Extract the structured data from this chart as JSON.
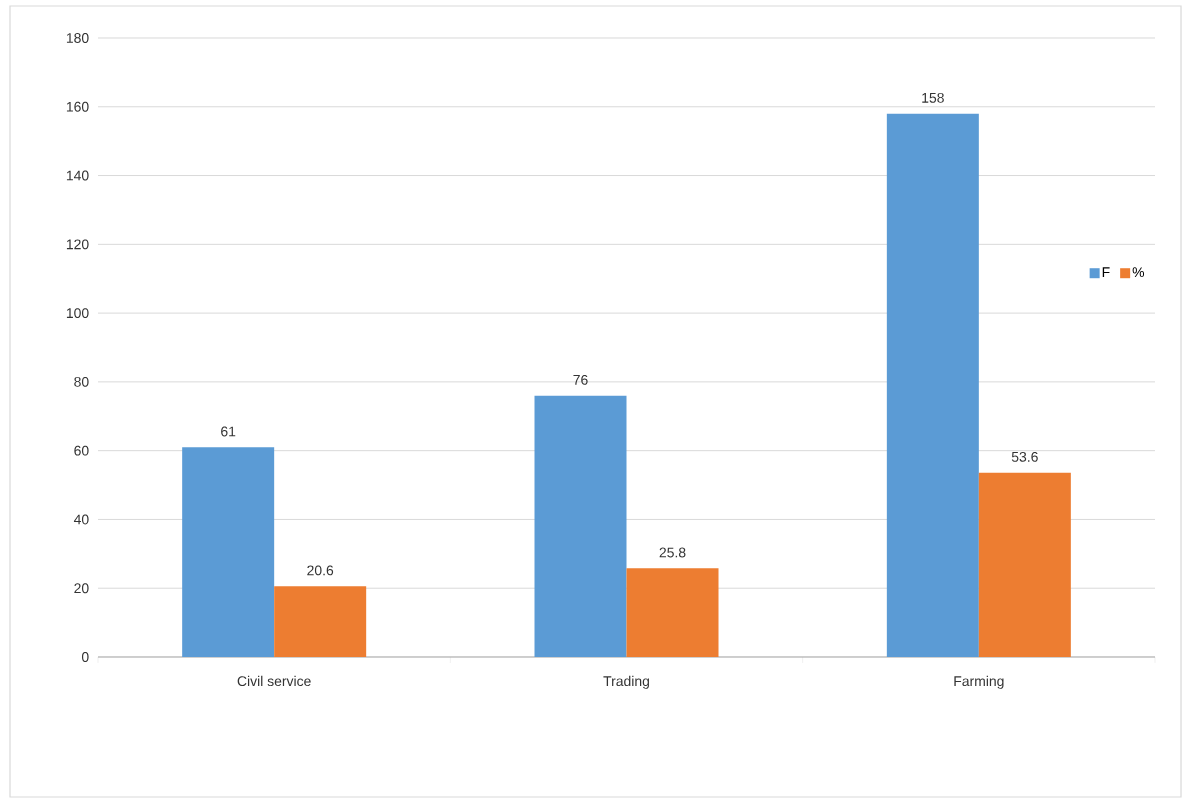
{
  "chart_data": {
    "type": "bar",
    "categories": [
      "Civil service",
      "Trading",
      "Farming"
    ],
    "series": [
      {
        "name": "F",
        "color": "#5b9bd5",
        "values": [
          61,
          76,
          158
        ]
      },
      {
        "name": "%",
        "color": "#ed7d31",
        "values": [
          20.6,
          25.8,
          53.6
        ]
      }
    ],
    "ylim": [
      0,
      180
    ],
    "yticks": [
      0,
      20,
      40,
      60,
      80,
      100,
      120,
      140,
      160,
      180
    ],
    "grid": "y",
    "legend": "right",
    "data_labels": true
  }
}
